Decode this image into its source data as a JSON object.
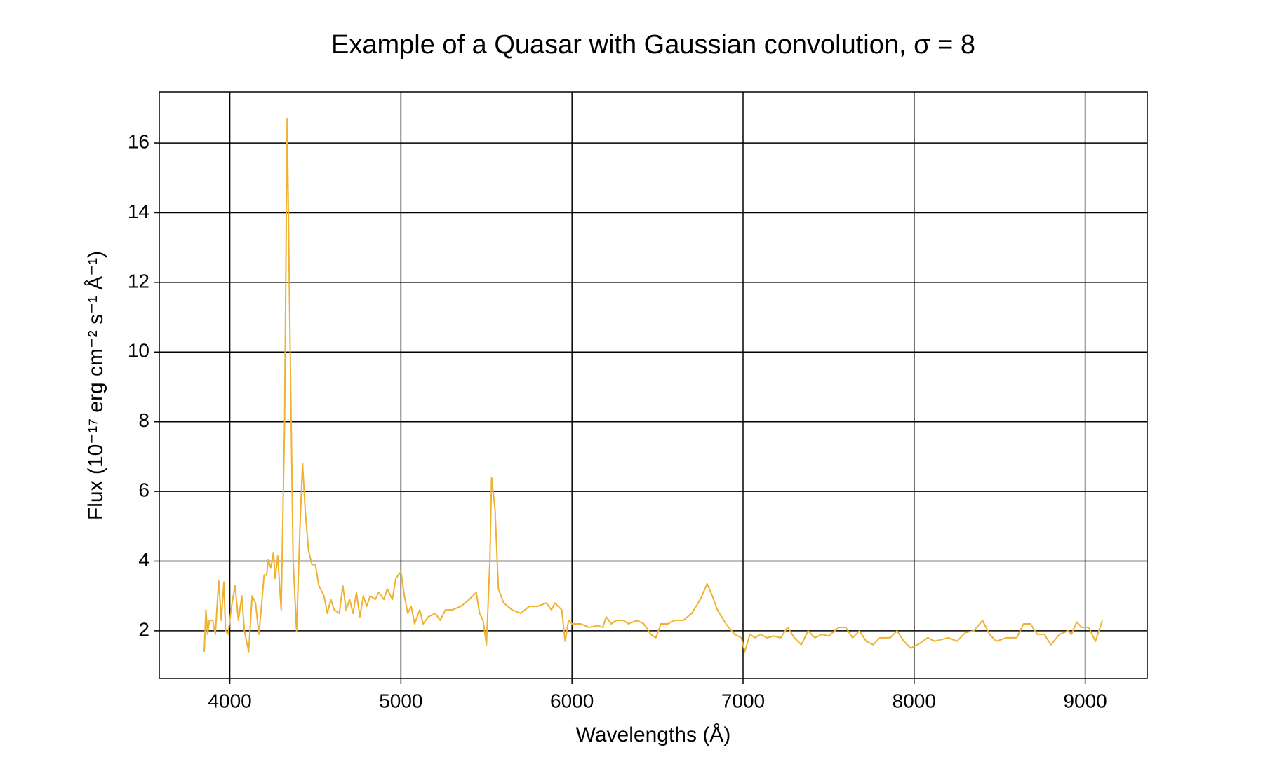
{
  "chart_data": {
    "type": "line",
    "title": "Example of a Quasar with Gaussian convolution, σ = 8",
    "x_label": "Wavelengths (Å)",
    "y_label": "Flux (10⁻¹⁷ erg cm⁻² s⁻¹ Å⁻¹)",
    "color": "#f0b030",
    "grid": true,
    "xlim": [
      3587.5,
      9362.5
    ],
    "ylim": [
      0.63,
      17.47
    ],
    "xticks": [
      4000,
      5000,
      6000,
      7000,
      8000,
      9000
    ],
    "yticks": [
      2,
      4,
      6,
      8,
      10,
      12,
      14,
      16
    ],
    "x": [
      3850,
      3860,
      3870,
      3880,
      3900,
      3915,
      3935,
      3950,
      3965,
      3975,
      3990,
      4010,
      4030,
      4050,
      4070,
      4085,
      4110,
      4130,
      4150,
      4170,
      4190,
      4200,
      4215,
      4225,
      4240,
      4255,
      4265,
      4280,
      4300,
      4320,
      4335,
      4350,
      4370,
      4390,
      4410,
      4425,
      4440,
      4460,
      4480,
      4500,
      4520,
      4550,
      4570,
      4590,
      4610,
      4640,
      4660,
      4680,
      4700,
      4720,
      4740,
      4760,
      4780,
      4800,
      4820,
      4850,
      4870,
      4900,
      4920,
      4950,
      4970,
      5000,
      5020,
      5040,
      5060,
      5080,
      5110,
      5130,
      5160,
      5200,
      5230,
      5260,
      5300,
      5350,
      5400,
      5440,
      5460,
      5480,
      5500,
      5520,
      5530,
      5550,
      5570,
      5600,
      5650,
      5700,
      5750,
      5800,
      5850,
      5880,
      5900,
      5940,
      5960,
      5980,
      6000,
      6050,
      6100,
      6150,
      6180,
      6200,
      6230,
      6260,
      6300,
      6330,
      6380,
      6420,
      6460,
      6490,
      6520,
      6560,
      6600,
      6650,
      6700,
      6750,
      6790,
      6820,
      6850,
      6900,
      6950,
      6990,
      7010,
      7040,
      7070,
      7100,
      7140,
      7180,
      7220,
      7260,
      7300,
      7340,
      7380,
      7420,
      7460,
      7500,
      7560,
      7600,
      7640,
      7680,
      7720,
      7760,
      7800,
      7860,
      7900,
      7940,
      7980,
      8020,
      8080,
      8120,
      8160,
      8200,
      8250,
      8300,
      8350,
      8400,
      8440,
      8480,
      8540,
      8600,
      8640,
      8680,
      8720,
      8760,
      8800,
      8850,
      8900,
      8920,
      8950,
      8980,
      9020,
      9060,
      9100
    ],
    "values": [
      1.4,
      2.6,
      1.9,
      2.3,
      2.3,
      1.9,
      3.45,
      2.3,
      3.4,
      2.0,
      1.9,
      2.7,
      3.3,
      2.3,
      3.0,
      2.0,
      1.4,
      3.0,
      2.8,
      1.9,
      3.0,
      3.6,
      3.6,
      4.05,
      3.8,
      4.25,
      3.5,
      4.15,
      2.6,
      8,
      16.7,
      11,
      4,
      2.0,
      5,
      6.8,
      5.5,
      4.3,
      3.9,
      3.9,
      3.3,
      3.0,
      2.5,
      2.9,
      2.6,
      2.5,
      3.3,
      2.6,
      2.9,
      2.5,
      3.1,
      2.4,
      3.0,
      2.7,
      3.0,
      2.9,
      3.1,
      2.9,
      3.2,
      2.9,
      3.5,
      3.7,
      3.0,
      2.5,
      2.7,
      2.2,
      2.6,
      2.2,
      2.4,
      2.5,
      2.3,
      2.6,
      2.6,
      2.7,
      2.9,
      3.1,
      2.5,
      2.3,
      1.6,
      4,
      6.4,
      5.5,
      3.2,
      2.8,
      2.6,
      2.5,
      2.7,
      2.7,
      2.8,
      2.6,
      2.8,
      2.6,
      1.7,
      2.3,
      2.2,
      2.2,
      2.1,
      2.15,
      2.1,
      2.4,
      2.2,
      2.3,
      2.3,
      2.2,
      2.3,
      2.2,
      1.9,
      1.8,
      2.2,
      2.2,
      2.3,
      2.3,
      2.5,
      2.9,
      3.35,
      3.0,
      2.6,
      2.2,
      1.9,
      1.8,
      1.4,
      1.9,
      1.8,
      1.9,
      1.8,
      1.85,
      1.8,
      2.1,
      1.8,
      1.6,
      2.0,
      1.8,
      1.9,
      1.85,
      2.1,
      2.1,
      1.8,
      2.0,
      1.7,
      1.6,
      1.8,
      1.8,
      2.0,
      1.7,
      1.5,
      1.6,
      1.8,
      1.7,
      1.75,
      1.8,
      1.7,
      1.95,
      2.0,
      2.3,
      1.9,
      1.7,
      1.8,
      1.8,
      2.2,
      2.2,
      1.9,
      1.9,
      1.6,
      1.9,
      2.0,
      1.9,
      2.25,
      2.1,
      2.1,
      1.7,
      2.3
    ]
  }
}
